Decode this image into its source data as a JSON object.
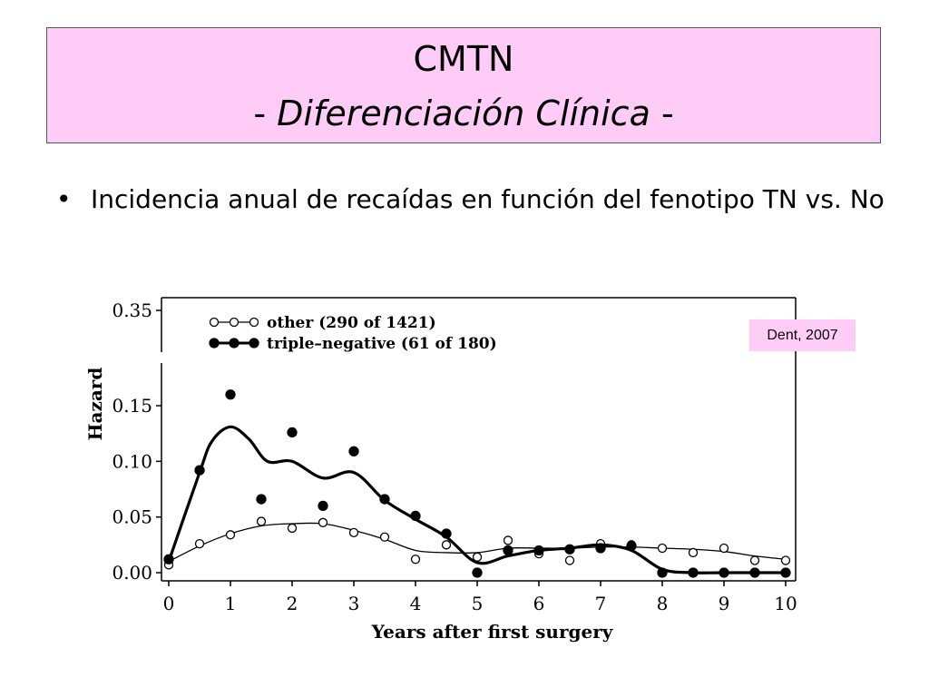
{
  "slide": {
    "title": "CMTN",
    "subtitle_prefix": "- ",
    "subtitle": "Diferenciación Clínica",
    "subtitle_suffix": " -",
    "bullet": "Incidencia anual de recaídas en función del fenotipo TN vs. No",
    "credit": "Dent, 2007"
  },
  "colors": {
    "title_bg": "#ffccf7",
    "credit_bg": "#ffccf7",
    "ink": "#000000"
  },
  "chart_data": {
    "type": "scatter",
    "xlabel": "Years after first surgery",
    "ylabel": "Hazard",
    "xlim": [
      0,
      10
    ],
    "ylim": [
      0,
      0.35
    ],
    "y_axis_break": [
      0.17,
      0.33
    ],
    "x_ticks": [
      "0",
      "1",
      "2",
      "3",
      "4",
      "5",
      "6",
      "7",
      "8",
      "9",
      "10"
    ],
    "y_ticks": [
      {
        "value": 0.0,
        "label": "0.00"
      },
      {
        "value": 0.05,
        "label": "0.05"
      },
      {
        "value": 0.1,
        "label": "0.10"
      },
      {
        "value": 0.15,
        "label": "0.15"
      },
      {
        "value": 0.35,
        "label": "0.35"
      }
    ],
    "legend_position": "top-left",
    "grid": false,
    "series": [
      {
        "name": "other (290 of 1421)",
        "marker": "open-circle",
        "x": [
          0,
          0.5,
          1,
          1.5,
          2,
          2.5,
          3,
          3.5,
          4,
          4.5,
          5,
          5.5,
          6,
          6.5,
          7,
          7.5,
          8,
          8.5,
          9,
          9.5,
          10
        ],
        "y": [
          0.007,
          0.026,
          0.034,
          0.046,
          0.04,
          0.045,
          0.036,
          0.032,
          0.012,
          0.025,
          0.014,
          0.029,
          0.017,
          0.011,
          0.026,
          0.025,
          0.022,
          0.018,
          0.022,
          0.011,
          0.011
        ],
        "smooth": [
          [
            0,
            0.01
          ],
          [
            0.5,
            0.024
          ],
          [
            1,
            0.035
          ],
          [
            1.5,
            0.042
          ],
          [
            2,
            0.044
          ],
          [
            2.5,
            0.044
          ],
          [
            3,
            0.038
          ],
          [
            3.5,
            0.03
          ],
          [
            4,
            0.02
          ],
          [
            4.5,
            0.018
          ],
          [
            5,
            0.018
          ],
          [
            5.5,
            0.022
          ],
          [
            6,
            0.022
          ],
          [
            6.5,
            0.022
          ],
          [
            7,
            0.023
          ],
          [
            7.5,
            0.023
          ],
          [
            8,
            0.022
          ],
          [
            8.5,
            0.021
          ],
          [
            9,
            0.019
          ],
          [
            9.5,
            0.015
          ],
          [
            10,
            0.012
          ]
        ]
      },
      {
        "name": "triple–negative (61 of 180)",
        "marker": "filled-circle",
        "x": [
          0,
          0.5,
          1,
          1.5,
          2,
          2.5,
          3,
          3.5,
          4,
          4.5,
          5,
          5.5,
          6,
          6.5,
          7,
          7.5,
          8,
          8.5,
          9,
          9.5,
          10
        ],
        "y": [
          0.012,
          0.092,
          0.16,
          0.066,
          0.126,
          0.06,
          0.109,
          0.066,
          0.051,
          0.035,
          0.0,
          0.02,
          0.02,
          0.021,
          0.022,
          0.024,
          0.0,
          0.0,
          0.0,
          0.0,
          0.0
        ],
        "smooth": [
          [
            0,
            0.01
          ],
          [
            0.5,
            0.09
          ],
          [
            0.7,
            0.118
          ],
          [
            1,
            0.131
          ],
          [
            1.3,
            0.12
          ],
          [
            1.6,
            0.1
          ],
          [
            2,
            0.1
          ],
          [
            2.5,
            0.085
          ],
          [
            3,
            0.09
          ],
          [
            3.5,
            0.065
          ],
          [
            4,
            0.048
          ],
          [
            4.5,
            0.032
          ],
          [
            5,
            0.009
          ],
          [
            5.5,
            0.015
          ],
          [
            6,
            0.02
          ],
          [
            6.5,
            0.022
          ],
          [
            7,
            0.025
          ],
          [
            7.5,
            0.02
          ],
          [
            8,
            0.003
          ],
          [
            8.5,
            0.0
          ],
          [
            9,
            0.0
          ],
          [
            10,
            0.0
          ]
        ]
      }
    ]
  }
}
